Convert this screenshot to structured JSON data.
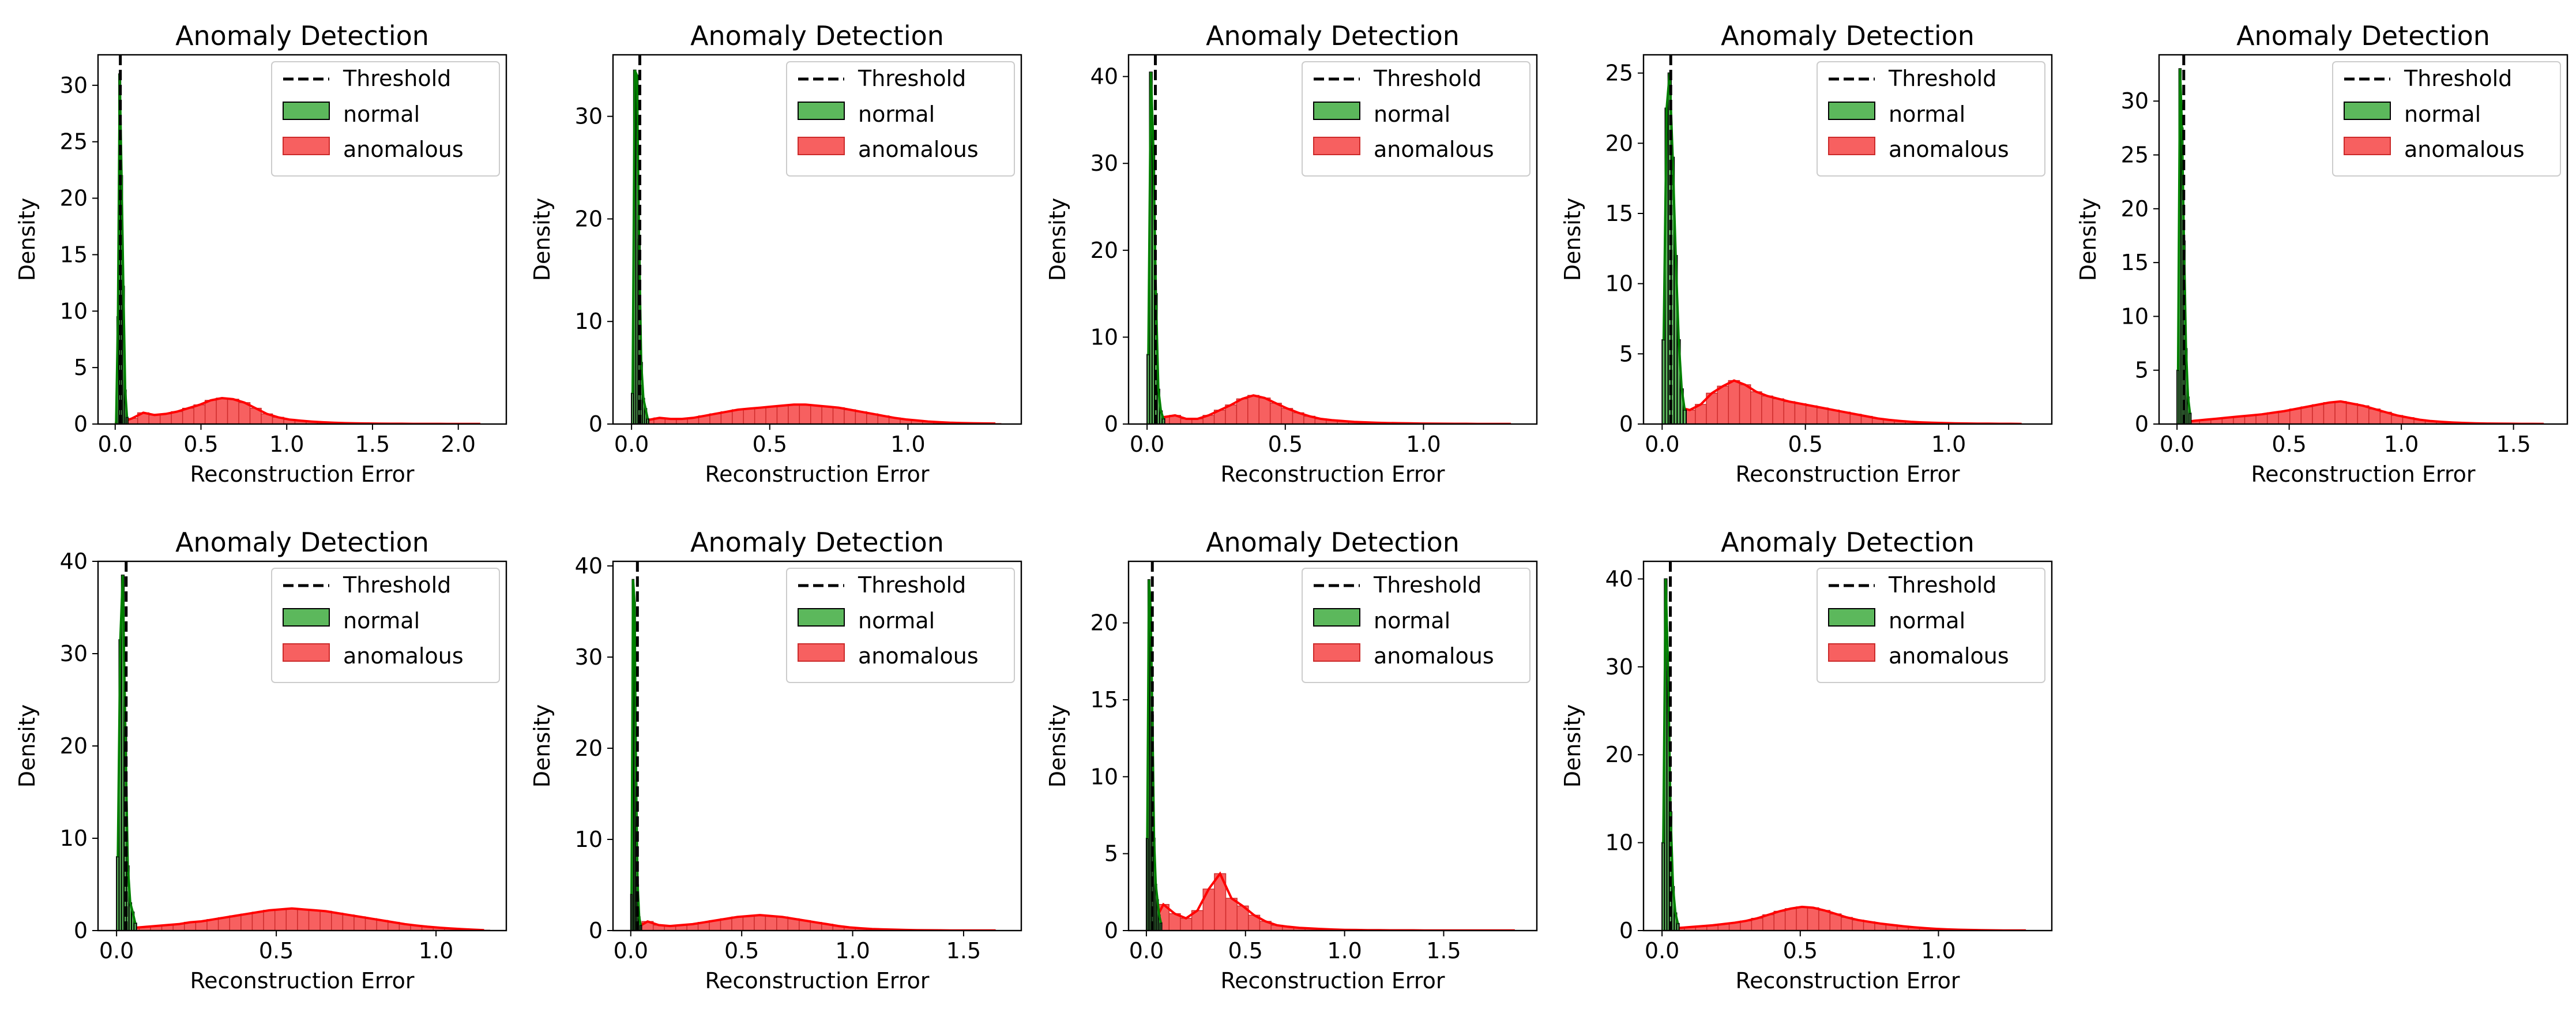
{
  "figure": {
    "background": "#ffffff",
    "normal_fill": "#5cb85c",
    "normal_edge": "#000000",
    "normal_kde": "#008000",
    "anomalous_fill": "#f76060",
    "anomalous_edge": "#cc2a2a",
    "anomalous_kde": "#ff0000",
    "threshold_color": "#000000"
  },
  "chart_data": [
    {
      "type": "histogram",
      "title": "Anomaly Detection",
      "xlabel": "Reconstruction Error",
      "ylabel": "Density",
      "xlim": [
        -0.1,
        2.28
      ],
      "ylim": [
        0,
        32.7
      ],
      "xticks": [
        0.0,
        0.5,
        1.0,
        1.5,
        2.0
      ],
      "xtick_labels": [
        "0.0",
        "0.5",
        "1.0",
        "1.5",
        "2.0"
      ],
      "yticks": [
        0,
        5,
        10,
        15,
        20,
        25,
        30
      ],
      "ytick_labels": [
        "0",
        "5",
        "10",
        "15",
        "20",
        "25",
        "30"
      ],
      "grid": false,
      "legend": {
        "placement": "upper-right",
        "entries": [
          "Threshold",
          "normal",
          "anomalous"
        ]
      },
      "threshold": 0.03,
      "normal": {
        "bin_start": 0.0,
        "bin_width": 0.0106,
        "values": [
          0,
          9.5,
          31.0,
          22.0,
          12.2,
          3.0,
          0.6
        ]
      },
      "anomalous": {
        "bin_start": 0.0,
        "bin_width": 0.0655,
        "values": [
          0.15,
          0.5,
          1.0,
          0.8,
          0.9,
          1.1,
          1.4,
          1.7,
          2.1,
          2.3,
          2.2,
          1.9,
          1.4,
          0.9,
          0.6,
          0.4,
          0.3,
          0.22,
          0.16,
          0.12,
          0.08,
          0.06,
          0.05,
          0.04,
          0.03,
          0.03,
          0.02,
          0.02,
          0.02,
          0.01,
          0.01,
          0.01,
          0.01
        ]
      }
    },
    {
      "type": "histogram",
      "title": "Anomaly Detection",
      "xlabel": "Reconstruction Error",
      "ylabel": "Density",
      "xlim": [
        -0.067,
        1.41
      ],
      "ylim": [
        0,
        36.0
      ],
      "xticks": [
        0.0,
        0.5,
        1.0
      ],
      "xtick_labels": [
        "0.0",
        "0.5",
        "1.0"
      ],
      "yticks": [
        0,
        10,
        20,
        30
      ],
      "ytick_labels": [
        "0",
        "10",
        "20",
        "30"
      ],
      "grid": false,
      "legend": {
        "placement": "upper-right",
        "entries": [
          "Threshold",
          "normal",
          "anomalous"
        ]
      },
      "threshold": 0.03,
      "normal": {
        "bin_start": 0.0,
        "bin_width": 0.0078,
        "values": [
          3.0,
          34.5,
          34.0,
          18.0,
          6.0,
          2.5,
          1.5,
          0.5
        ]
      },
      "anomalous": {
        "bin_start": 0.0,
        "bin_width": 0.0405,
        "values": [
          0.2,
          0.4,
          0.6,
          0.5,
          0.5,
          0.6,
          0.8,
          1.0,
          1.2,
          1.4,
          1.5,
          1.6,
          1.7,
          1.8,
          1.9,
          1.9,
          1.8,
          1.7,
          1.6,
          1.4,
          1.2,
          1.0,
          0.8,
          0.6,
          0.45,
          0.35,
          0.25,
          0.18,
          0.13,
          0.1,
          0.08,
          0.06,
          0.05
        ]
      }
    },
    {
      "type": "histogram",
      "title": "Anomaly Detection",
      "xlabel": "Reconstruction Error",
      "ylabel": "Density",
      "xlim": [
        -0.067,
        1.41
      ],
      "ylim": [
        0,
        42.5
      ],
      "xticks": [
        0.0,
        0.5,
        1.0
      ],
      "xtick_labels": [
        "0.0",
        "0.5",
        "1.0"
      ],
      "yticks": [
        0,
        10,
        20,
        30,
        40
      ],
      "ytick_labels": [
        "0",
        "10",
        "20",
        "30",
        "40"
      ],
      "grid": false,
      "legend": {
        "placement": "upper-right",
        "entries": [
          "Threshold",
          "normal",
          "anomalous"
        ]
      },
      "threshold": 0.03,
      "normal": {
        "bin_start": 0.0,
        "bin_width": 0.0091,
        "values": [
          8.0,
          40.5,
          32.0,
          15.0,
          4.0,
          1.5,
          0.6
        ]
      },
      "anomalous": {
        "bin_start": 0.0,
        "bin_width": 0.0405,
        "values": [
          0.3,
          0.8,
          1.0,
          0.6,
          0.6,
          1.0,
          1.6,
          2.2,
          2.9,
          3.3,
          3.0,
          2.4,
          1.8,
          1.3,
          0.9,
          0.6,
          0.45,
          0.35,
          0.25,
          0.2,
          0.15,
          0.12,
          0.1,
          0.08,
          0.06,
          0.05,
          0.04,
          0.03,
          0.03,
          0.02,
          0.02,
          0.02,
          0.01
        ]
      }
    },
    {
      "type": "histogram",
      "title": "Anomaly Detection",
      "xlabel": "Reconstruction Error",
      "ylabel": "Density",
      "xlim": [
        -0.065,
        1.36
      ],
      "ylim": [
        0,
        26.3
      ],
      "xticks": [
        0.0,
        0.5,
        1.0
      ],
      "xtick_labels": [
        "0.0",
        "0.5",
        "1.0"
      ],
      "yticks": [
        0,
        5,
        10,
        15,
        20,
        25
      ],
      "ytick_labels": [
        "0",
        "5",
        "10",
        "15",
        "20",
        "25"
      ],
      "grid": false,
      "legend": {
        "placement": "upper-right",
        "entries": [
          "Threshold",
          "normal",
          "anomalous"
        ]
      },
      "threshold": 0.03,
      "normal": {
        "bin_start": 0.0,
        "bin_width": 0.0105,
        "values": [
          6.0,
          22.5,
          25.0,
          19.0,
          12.0,
          6.0,
          2.5,
          1.0
        ]
      },
      "anomalous": {
        "bin_start": 0.0,
        "bin_width": 0.0386,
        "values": [
          0.5,
          1.2,
          1.0,
          1.4,
          2.2,
          2.7,
          3.1,
          2.8,
          2.3,
          2.0,
          1.8,
          1.6,
          1.45,
          1.3,
          1.15,
          1.0,
          0.85,
          0.7,
          0.55,
          0.4,
          0.3,
          0.22,
          0.16,
          0.12,
          0.09,
          0.07,
          0.05,
          0.04,
          0.03,
          0.03,
          0.02,
          0.02,
          0.01
        ]
      }
    },
    {
      "type": "histogram",
      "title": "Anomaly Detection",
      "xlabel": "Reconstruction Error",
      "ylabel": "Density",
      "xlim": [
        -0.08,
        1.74
      ],
      "ylim": [
        0,
        34.3
      ],
      "xticks": [
        0.0,
        0.5,
        1.0,
        1.5
      ],
      "xtick_labels": [
        "0.0",
        "0.5",
        "1.0",
        "1.5"
      ],
      "yticks": [
        0,
        5,
        10,
        15,
        20,
        25,
        30
      ],
      "ytick_labels": [
        "0",
        "5",
        "10",
        "15",
        "20",
        "25",
        "30"
      ],
      "grid": false,
      "legend": {
        "placement": "upper-right",
        "entries": [
          "Threshold",
          "normal",
          "anomalous"
        ]
      },
      "threshold": 0.03,
      "normal": {
        "bin_start": 0.0,
        "bin_width": 0.0089,
        "values": [
          5.0,
          33.0,
          27.5,
          17.0,
          7.0,
          2.5,
          1.0
        ]
      },
      "anomalous": {
        "bin_start": 0.0,
        "bin_width": 0.0503,
        "values": [
          0.15,
          0.3,
          0.4,
          0.5,
          0.6,
          0.7,
          0.8,
          0.9,
          1.05,
          1.2,
          1.4,
          1.6,
          1.8,
          2.0,
          2.1,
          1.9,
          1.7,
          1.4,
          1.1,
          0.8,
          0.6,
          0.4,
          0.28,
          0.2,
          0.14,
          0.1,
          0.07,
          0.05,
          0.04,
          0.03,
          0.02,
          0.02,
          0.01
        ]
      }
    },
    {
      "type": "histogram",
      "title": "Anomaly Detection",
      "xlabel": "Reconstruction Error",
      "ylabel": "Density",
      "xlim": [
        -0.058,
        1.22
      ],
      "ylim": [
        0,
        40.0
      ],
      "xticks": [
        0.0,
        0.5,
        1.0
      ],
      "xtick_labels": [
        "0.0",
        "0.5",
        "1.0"
      ],
      "yticks": [
        0,
        10,
        20,
        30,
        40
      ],
      "ytick_labels": [
        "0",
        "10",
        "20",
        "30",
        "40"
      ],
      "grid": false,
      "legend": {
        "placement": "upper-right",
        "entries": [
          "Threshold",
          "normal",
          "anomalous"
        ]
      },
      "threshold": 0.03,
      "normal": {
        "bin_start": 0.0,
        "bin_width": 0.0078,
        "values": [
          8.0,
          31.5,
          38.5,
          22.0,
          7.0,
          3.0,
          2.0,
          0.8
        ]
      },
      "anomalous": {
        "bin_start": 0.0,
        "bin_width": 0.0354,
        "values": [
          0.2,
          0.3,
          0.4,
          0.5,
          0.6,
          0.7,
          0.9,
          1.0,
          1.2,
          1.4,
          1.6,
          1.8,
          2.0,
          2.2,
          2.3,
          2.4,
          2.3,
          2.2,
          2.1,
          1.9,
          1.7,
          1.5,
          1.3,
          1.1,
          0.9,
          0.7,
          0.55,
          0.42,
          0.32,
          0.24,
          0.16,
          0.1,
          0.05
        ]
      }
    },
    {
      "type": "histogram",
      "title": "Anomaly Detection",
      "xlabel": "Reconstruction Error",
      "ylabel": "Density",
      "xlim": [
        -0.08,
        1.76
      ],
      "ylim": [
        0,
        40.5
      ],
      "xticks": [
        0.0,
        0.5,
        1.0,
        1.5
      ],
      "xtick_labels": [
        "0.0",
        "0.5",
        "1.0",
        "1.5"
      ],
      "yticks": [
        0,
        10,
        20,
        30,
        40
      ],
      "ytick_labels": [
        "0",
        "10",
        "20",
        "30",
        "40"
      ],
      "grid": false,
      "legend": {
        "placement": "upper-right",
        "entries": [
          "Threshold",
          "normal",
          "anomalous"
        ]
      },
      "threshold": 0.03,
      "normal": {
        "bin_start": 0.0,
        "bin_width": 0.0069,
        "values": [
          4.0,
          38.5,
          36.0,
          16.5,
          5.0,
          1.5,
          0.6
        ]
      },
      "anomalous": {
        "bin_start": 0.0,
        "bin_width": 0.0506,
        "values": [
          0.3,
          1.0,
          0.6,
          0.5,
          0.6,
          0.7,
          0.9,
          1.1,
          1.3,
          1.5,
          1.6,
          1.7,
          1.6,
          1.5,
          1.3,
          1.1,
          0.9,
          0.7,
          0.5,
          0.35,
          0.25,
          0.18,
          0.13,
          0.1,
          0.07,
          0.05,
          0.04,
          0.03,
          0.02,
          0.02,
          0.01,
          0.01,
          0.01
        ]
      }
    },
    {
      "type": "histogram",
      "title": "Anomaly Detection",
      "xlabel": "Reconstruction Error",
      "ylabel": "Density",
      "xlim": [
        -0.09,
        1.97
      ],
      "ylim": [
        0,
        24.0
      ],
      "xticks": [
        0.0,
        0.5,
        1.0,
        1.5
      ],
      "xtick_labels": [
        "0.0",
        "0.5",
        "1.0",
        "1.5"
      ],
      "yticks": [
        0,
        5,
        10,
        15,
        20
      ],
      "ytick_labels": [
        "0",
        "5",
        "10",
        "15",
        "20"
      ],
      "grid": false,
      "legend": {
        "placement": "upper-right",
        "entries": [
          "Threshold",
          "normal",
          "anomalous"
        ]
      },
      "threshold": 0.03,
      "normal": {
        "bin_start": 0.0,
        "bin_width": 0.0086,
        "values": [
          6.0,
          22.8,
          21.0,
          14.0,
          6.0,
          3.0,
          2.0,
          1.0,
          0.5
        ]
      },
      "anomalous": {
        "bin_start": 0.0,
        "bin_width": 0.0572,
        "values": [
          0.3,
          1.7,
          1.1,
          0.8,
          1.3,
          2.7,
          3.7,
          2.1,
          1.6,
          1.0,
          0.6,
          0.35,
          0.25,
          0.18,
          0.14,
          0.1,
          0.07,
          0.05,
          0.04,
          0.03,
          0.03,
          0.02,
          0.02,
          0.02,
          0.01,
          0.01,
          0.01,
          0.01,
          0.01,
          0.01,
          0.01,
          0.01,
          0.01
        ]
      }
    },
    {
      "type": "histogram",
      "title": "Anomaly Detection",
      "xlabel": "Reconstruction Error",
      "ylabel": "Density",
      "xlim": [
        -0.067,
        1.41
      ],
      "ylim": [
        0,
        42.0
      ],
      "xticks": [
        0.0,
        0.5,
        1.0
      ],
      "xtick_labels": [
        "0.0",
        "0.5",
        "1.0"
      ],
      "yticks": [
        0,
        10,
        20,
        30,
        40
      ],
      "ytick_labels": [
        "0",
        "10",
        "20",
        "30",
        "40"
      ],
      "grid": false,
      "legend": {
        "placement": "upper-right",
        "entries": [
          "Threshold",
          "normal",
          "anomalous"
        ]
      },
      "threshold": 0.03,
      "normal": {
        "bin_start": 0.0,
        "bin_width": 0.0088,
        "values": [
          10.0,
          40.0,
          29.5,
          13.5,
          5.0,
          2.0,
          0.8
        ]
      },
      "anomalous": {
        "bin_start": 0.0,
        "bin_width": 0.0405,
        "values": [
          0.2,
          0.3,
          0.4,
          0.5,
          0.6,
          0.75,
          0.9,
          1.1,
          1.4,
          1.8,
          2.2,
          2.5,
          2.7,
          2.6,
          2.3,
          1.9,
          1.5,
          1.2,
          1.0,
          0.8,
          0.65,
          0.5,
          0.38,
          0.28,
          0.2,
          0.14,
          0.1,
          0.07,
          0.05,
          0.03,
          0.02,
          0.01,
          0.01
        ]
      }
    }
  ]
}
